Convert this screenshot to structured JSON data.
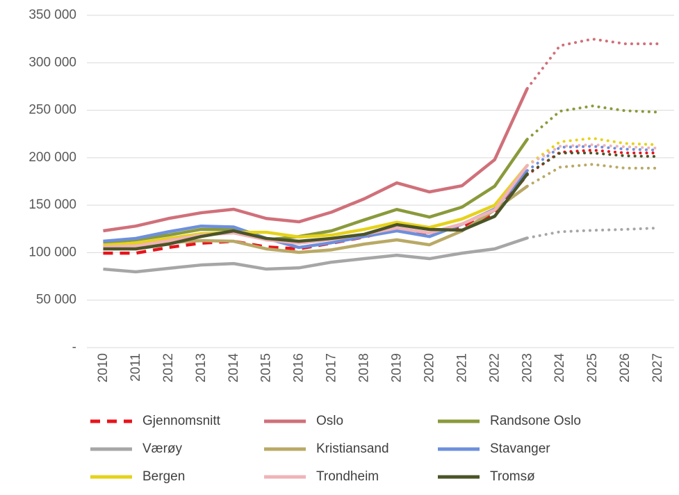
{
  "chart_data": {
    "type": "line",
    "categories": [
      "2010",
      "2011",
      "2012",
      "2013",
      "2014",
      "2015",
      "2016",
      "2017",
      "2018",
      "2019",
      "2020",
      "2021",
      "2022",
      "2023",
      "2024",
      "2025",
      "2026",
      "2027"
    ],
    "dotted_from": "2023",
    "ylim": [
      0,
      350000
    ],
    "yticks": [
      {
        "value": 0,
        "label": "-"
      },
      {
        "value": 50000,
        "label": "50 000"
      },
      {
        "value": 100000,
        "label": "100 000"
      },
      {
        "value": 150000,
        "label": "150 000"
      },
      {
        "value": 200000,
        "label": "200 000"
      },
      {
        "value": 250000,
        "label": "250 000"
      },
      {
        "value": 300000,
        "label": "300 000"
      },
      {
        "value": 350000,
        "label": "350 000"
      }
    ],
    "grid": true,
    "legend": "bottom",
    "series": [
      {
        "name": "Gjennomsnitt",
        "color": "#e8131b",
        "dashed": true,
        "values": [
          99500,
          99500,
          105500,
          110000,
          112000,
          106000,
          104000,
          110000,
          116500,
          124500,
          119300,
          126700,
          141300,
          182000,
          205700,
          208000,
          205000,
          205000
        ]
      },
      {
        "name": "Oslo",
        "color": "#d0707a",
        "values": [
          123000,
          128000,
          136000,
          142000,
          145700,
          136000,
          132500,
          142700,
          156700,
          173500,
          164000,
          170500,
          198000,
          273000,
          318000,
          325000,
          320000,
          320000
        ]
      },
      {
        "name": "Randsone Oslo",
        "color": "#8a9a3b",
        "values": [
          110500,
          113500,
          118500,
          124500,
          124500,
          113500,
          117000,
          123000,
          134500,
          145500,
          137500,
          148000,
          170000,
          219500,
          249000,
          254500,
          249500,
          248000
        ]
      },
      {
        "name": "Værøy",
        "color": "#a6a6a6",
        "values": [
          82700,
          79800,
          83500,
          87000,
          88500,
          82700,
          84000,
          90000,
          93700,
          97300,
          93700,
          99500,
          104000,
          115500,
          122000,
          123500,
          124500,
          126000
        ]
      },
      {
        "name": "Kristiansand",
        "color": "#b9a965",
        "values": [
          106000,
          108000,
          110500,
          112700,
          112000,
          104000,
          100300,
          103000,
          109000,
          113500,
          108300,
          123000,
          145000,
          170000,
          190000,
          193000,
          189000,
          189000
        ]
      },
      {
        "name": "Stavanger",
        "color": "#6d8fdc",
        "values": [
          112000,
          115000,
          122000,
          128000,
          127000,
          115000,
          105500,
          110500,
          117000,
          123000,
          117000,
          130000,
          146000,
          186500,
          211000,
          212000,
          209000,
          208000
        ]
      },
      {
        "name": "Bergen",
        "color": "#e6d21a",
        "values": [
          108000,
          110000,
          115000,
          120000,
          121500,
          121500,
          116500,
          118500,
          124500,
          132000,
          126500,
          135500,
          150000,
          192000,
          216700,
          220500,
          215000,
          213700
        ]
      },
      {
        "name": "Trondheim",
        "color": "#f0b3b8",
        "values": [
          106000,
          107000,
          112700,
          118500,
          120800,
          113500,
          110000,
          114000,
          119300,
          126000,
          120800,
          130300,
          145000,
          192000,
          212000,
          213700,
          211500,
          210000
        ]
      },
      {
        "name": "Tromsø",
        "color": "#4a5428",
        "values": [
          104000,
          104000,
          109000,
          117000,
          123000,
          115000,
          112000,
          115000,
          119300,
          129500,
          124500,
          123700,
          138300,
          183000,
          205000,
          205000,
          202000,
          201300
        ]
      }
    ]
  }
}
